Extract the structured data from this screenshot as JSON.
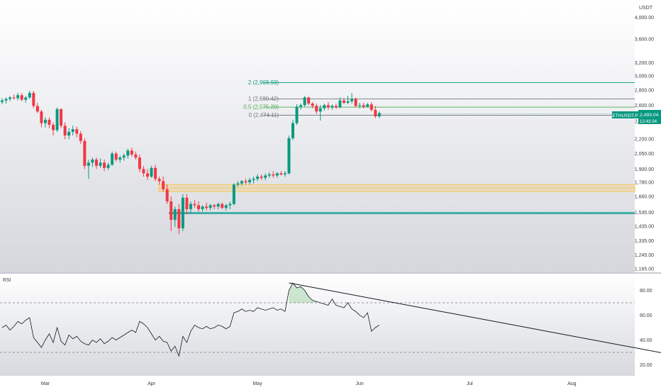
{
  "chart_data": [
    {
      "type": "candlestick",
      "symbol": "ETHUSDT.P",
      "currency": "USDT",
      "price_axis": {
        "ticks": [
          "4,000.00",
          "3,600.00",
          "3,200.00",
          "3,000.00",
          "2,800.00",
          "2,600.00",
          "2,400.00",
          "2,200.00",
          "2,050.00",
          "1,900.00",
          "1,780.00",
          "1,660.00",
          "1,535.00",
          "1,435.00",
          "1,335.00",
          "1,245.00",
          "1,165.00"
        ],
        "scale": "log",
        "range": [
          1160,
          4150
        ]
      },
      "last_price": {
        "value": "2,493.04",
        "countdown": "12:43:34",
        "color": "#089981"
      },
      "fib_levels": [
        {
          "label": "2 (2,903.93)",
          "value": 2903.93,
          "color": "#089981"
        },
        {
          "label": "1 (2,680.42)",
          "value": 2680.42,
          "color": "#787b86"
        },
        {
          "label": "0.5 (2,575.20)",
          "value": 2575.2,
          "color": "#4caf50"
        },
        {
          "label": "0 (2,474.11)",
          "value": 2474.11,
          "color": "#787b86"
        }
      ],
      "zones": [
        {
          "kind": "resistance",
          "from": 1700,
          "to": 1760,
          "color": "#f7c65a"
        },
        {
          "kind": "support",
          "from": 1522,
          "to": 1538,
          "color": "#26a69a"
        }
      ],
      "candles": [
        [
          2640,
          2690,
          2610,
          2660
        ],
        [
          2660,
          2700,
          2620,
          2680
        ],
        [
          2680,
          2720,
          2650,
          2700
        ],
        [
          2700,
          2740,
          2670,
          2690
        ],
        [
          2690,
          2760,
          2660,
          2730
        ],
        [
          2730,
          2760,
          2650,
          2670
        ],
        [
          2670,
          2720,
          2630,
          2700
        ],
        [
          2700,
          2790,
          2680,
          2760
        ],
        [
          2760,
          2790,
          2560,
          2590
        ],
        [
          2590,
          2630,
          2500,
          2520
        ],
        [
          2520,
          2540,
          2330,
          2380
        ],
        [
          2380,
          2450,
          2330,
          2420
        ],
        [
          2420,
          2450,
          2320,
          2360
        ],
        [
          2360,
          2390,
          2240,
          2300
        ],
        [
          2300,
          2570,
          2280,
          2550
        ],
        [
          2550,
          2560,
          2320,
          2350
        ],
        [
          2350,
          2390,
          2200,
          2240
        ],
        [
          2240,
          2320,
          2200,
          2280
        ],
        [
          2280,
          2350,
          2240,
          2310
        ],
        [
          2310,
          2340,
          2220,
          2260
        ],
        [
          2260,
          2290,
          2150,
          2180
        ],
        [
          2180,
          2210,
          1900,
          1930
        ],
        [
          1930,
          1990,
          1810,
          1960
        ],
        [
          1960,
          2010,
          1920,
          1990
        ],
        [
          1990,
          2010,
          1900,
          1930
        ],
        [
          1930,
          2000,
          1910,
          1960
        ],
        [
          1960,
          1990,
          1880,
          1910
        ],
        [
          1910,
          1960,
          1890,
          1940
        ],
        [
          1940,
          2070,
          1930,
          2050
        ],
        [
          2050,
          2070,
          1970,
          1990
        ],
        [
          1990,
          2030,
          1960,
          2010
        ],
        [
          2010,
          2050,
          1980,
          2030
        ],
        [
          2030,
          2100,
          2000,
          2080
        ],
        [
          2080,
          2110,
          2020,
          2040
        ],
        [
          2040,
          2070,
          1990,
          2010
        ],
        [
          2010,
          2040,
          1870,
          1900
        ],
        [
          1900,
          1930,
          1830,
          1860
        ],
        [
          1860,
          1900,
          1800,
          1830
        ],
        [
          1830,
          1930,
          1820,
          1910
        ],
        [
          1910,
          1940,
          1790,
          1810
        ],
        [
          1810,
          1830,
          1760,
          1790
        ],
        [
          1790,
          1830,
          1700,
          1720
        ],
        [
          1720,
          1760,
          1600,
          1620
        ],
        [
          1620,
          1660,
          1400,
          1480
        ],
        [
          1480,
          1580,
          1430,
          1560
        ],
        [
          1560,
          1600,
          1380,
          1420
        ],
        [
          1420,
          1680,
          1400,
          1650
        ],
        [
          1650,
          1680,
          1520,
          1560
        ],
        [
          1560,
          1620,
          1530,
          1600
        ],
        [
          1600,
          1630,
          1570,
          1590
        ],
        [
          1590,
          1620,
          1540,
          1560
        ],
        [
          1560,
          1590,
          1540,
          1580
        ],
        [
          1580,
          1610,
          1550,
          1570
        ],
        [
          1570,
          1600,
          1550,
          1590
        ],
        [
          1590,
          1600,
          1560,
          1580
        ],
        [
          1580,
          1610,
          1560,
          1600
        ],
        [
          1600,
          1610,
          1560,
          1570
        ],
        [
          1570,
          1600,
          1550,
          1590
        ],
        [
          1590,
          1620,
          1560,
          1600
        ],
        [
          1600,
          1770,
          1590,
          1760
        ],
        [
          1760,
          1790,
          1740,
          1770
        ],
        [
          1770,
          1800,
          1750,
          1790
        ],
        [
          1790,
          1810,
          1760,
          1780
        ],
        [
          1780,
          1820,
          1760,
          1800
        ],
        [
          1800,
          1830,
          1770,
          1810
        ],
        [
          1810,
          1850,
          1790,
          1830
        ],
        [
          1830,
          1850,
          1800,
          1820
        ],
        [
          1820,
          1860,
          1800,
          1840
        ],
        [
          1840,
          1870,
          1820,
          1850
        ],
        [
          1850,
          1880,
          1820,
          1840
        ],
        [
          1840,
          1870,
          1820,
          1860
        ],
        [
          1860,
          1880,
          1840,
          1850
        ],
        [
          1850,
          1880,
          1830,
          1860
        ],
        [
          1860,
          2240,
          1850,
          2210
        ],
        [
          2210,
          2420,
          2190,
          2380
        ],
        [
          2380,
          2610,
          2360,
          2580
        ],
        [
          2580,
          2620,
          2540,
          2600
        ],
        [
          2600,
          2720,
          2580,
          2700
        ],
        [
          2700,
          2710,
          2600,
          2620
        ],
        [
          2620,
          2640,
          2560,
          2590
        ],
        [
          2590,
          2620,
          2490,
          2520
        ],
        [
          2520,
          2600,
          2410,
          2560
        ],
        [
          2560,
          2620,
          2530,
          2600
        ],
        [
          2600,
          2640,
          2540,
          2570
        ],
        [
          2570,
          2610,
          2540,
          2590
        ],
        [
          2590,
          2620,
          2550,
          2570
        ],
        [
          2570,
          2700,
          2560,
          2660
        ],
        [
          2660,
          2690,
          2610,
          2630
        ],
        [
          2630,
          2720,
          2610,
          2650
        ],
        [
          2650,
          2760,
          2620,
          2680
        ],
        [
          2680,
          2700,
          2570,
          2590
        ],
        [
          2590,
          2630,
          2560,
          2600
        ],
        [
          2600,
          2630,
          2560,
          2580
        ],
        [
          2580,
          2630,
          2570,
          2610
        ],
        [
          2610,
          2640,
          2520,
          2540
        ],
        [
          2540,
          2590,
          2440,
          2460
        ],
        [
          2460,
          2520,
          2440,
          2500
        ]
      ]
    },
    {
      "type": "line",
      "title": "RSI",
      "y_ticks": [
        "80.00",
        "60.00",
        "40.00",
        "20.00"
      ],
      "ylim": [
        10,
        90
      ],
      "bands": [
        70,
        30
      ],
      "x_labels": [
        "Mar",
        "Apr",
        "May",
        "Jun",
        "Jul",
        "Aug"
      ],
      "values": [
        50,
        52,
        48,
        51,
        55,
        53,
        56,
        58,
        42,
        38,
        34,
        40,
        45,
        38,
        50,
        39,
        36,
        44,
        41,
        43,
        39,
        37,
        36,
        40,
        38,
        41,
        37,
        39,
        42,
        40,
        42,
        44,
        46,
        48,
        46,
        55,
        53,
        50,
        45,
        40,
        43,
        39,
        38,
        31,
        35,
        27,
        43,
        38,
        47,
        52,
        50,
        49,
        51,
        49,
        50,
        52,
        51,
        49,
        51,
        62,
        63,
        65,
        63,
        64,
        63,
        66,
        65,
        64,
        65,
        66,
        64,
        65,
        63,
        80,
        86,
        82,
        83,
        80,
        75,
        72,
        71,
        70,
        69,
        68,
        73,
        68,
        67,
        66,
        70,
        65,
        63,
        60,
        58,
        62,
        47,
        50,
        52
      ],
      "trendline": {
        "from_index": 73,
        "from_value": 86,
        "to_index": 196,
        "to_value": 13
      }
    }
  ]
}
